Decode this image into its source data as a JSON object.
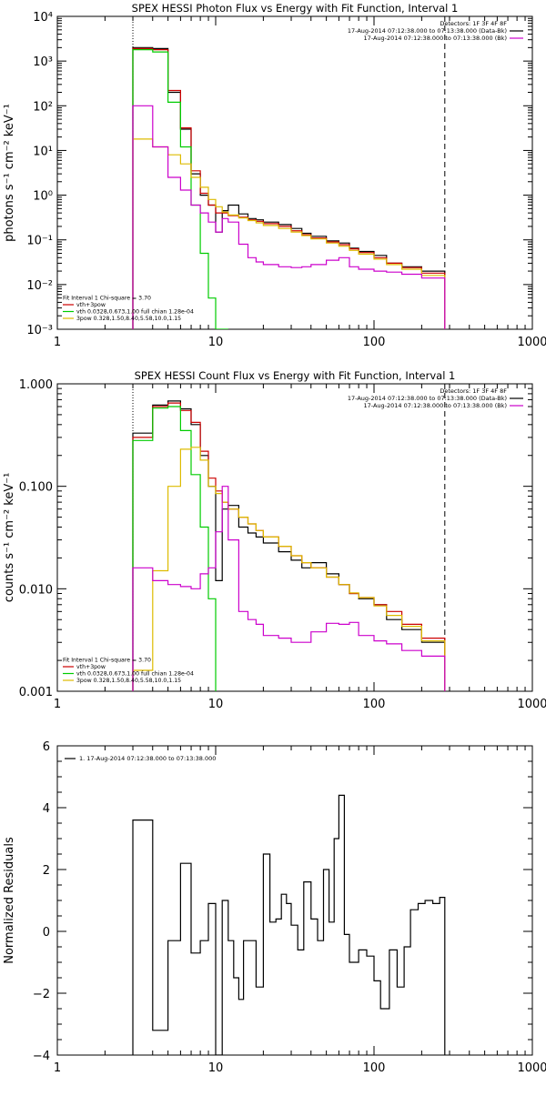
{
  "chart_data": [
    {
      "type": "line",
      "title": "SPEX HESSI Photon Flux vs Energy with Fit Function, Interval 1",
      "ylabel": "photons s⁻¹ cm⁻² keV⁻¹",
      "xscale": "log",
      "yscale": "log",
      "xlim": [
        1,
        1000
      ],
      "ylim": [
        0.001,
        10000
      ],
      "x_ticks": [
        "1",
        "10",
        "100",
        "1000"
      ],
      "y_ticks": [
        "10⁻³",
        "10⁻²",
        "10⁻¹",
        "10⁰",
        "10¹",
        "10²",
        "10³",
        "10⁴"
      ],
      "legend_topright": [
        {
          "text": "Detectors: 1F 3F 4F 8F",
          "color": "#000000"
        },
        {
          "text": "17-Aug-2014 07:12:38.000 to 07:13:38.000 (Data-Bk)",
          "color": "#000000"
        },
        {
          "text": "17-Aug-2014 07:12:38.000 to 07:13:38.000 (Bk)",
          "color": "#cc00cc"
        }
      ],
      "legend_bottomleft": [
        {
          "text": "Fit Interval 1   Chi-square = 3.70",
          "color": "#000000"
        },
        {
          "text": "vth+3pow",
          "color": "#cc0000"
        },
        {
          "text": "vth 0.0328,0.673,1.00  full chian 1.28e-04",
          "color": "#00cc00"
        },
        {
          "text": "3pow 0.328,1.50,8.40,5.58,10.0,1.15",
          "color": "#ddbb00"
        }
      ],
      "vlines": [
        {
          "x": 3,
          "style": "dotted",
          "color": "#000000"
        },
        {
          "x": 280,
          "style": "dashed",
          "color": "#000000"
        }
      ],
      "series": [
        {
          "color": "#000000",
          "x": [
            3.0,
            4.0,
            5.0,
            6.0,
            7.0,
            8.0,
            9.0,
            10.0,
            11.0,
            12.0,
            14.0,
            16.0,
            18.0,
            20.0,
            25.0,
            30.0,
            35.0,
            40.0,
            50.0,
            60.0,
            70.0,
            80.0,
            100.0,
            120.0,
            150.0,
            200.0,
            280.0
          ],
          "y": [
            2000.0,
            1900.0,
            200.0,
            30.0,
            3.0,
            1.0,
            0.6,
            0.15,
            0.45,
            0.6,
            0.38,
            0.3,
            0.28,
            0.25,
            0.22,
            0.18,
            0.14,
            0.12,
            0.095,
            0.085,
            0.065,
            0.055,
            0.045,
            0.03,
            0.025,
            0.02,
            0.015
          ]
        },
        {
          "color": "#cc0000",
          "x": [
            3.0,
            4.0,
            5.0,
            6.0,
            7.0,
            8.0,
            9.0,
            10.0,
            11.0,
            12.0,
            14.0,
            16.0,
            18.0,
            20.0,
            25.0,
            30.0,
            35.0,
            40.0,
            50.0,
            60.0,
            70.0,
            80.0,
            100.0,
            120.0,
            150.0,
            200.0,
            280.0
          ],
          "y": [
            1900.0,
            1800.0,
            220.0,
            32.0,
            3.5,
            1.1,
            0.6,
            0.4,
            0.4,
            0.35,
            0.32,
            0.28,
            0.26,
            0.23,
            0.2,
            0.16,
            0.13,
            0.11,
            0.09,
            0.078,
            0.063,
            0.052,
            0.04,
            0.03,
            0.024,
            0.018,
            0.012
          ]
        },
        {
          "color": "#00cc00",
          "x": [
            3.0,
            4.0,
            5.0,
            6.0,
            7.0,
            8.0,
            9.0,
            10.0,
            11.0,
            12.0
          ],
          "y": [
            1800.0,
            1600.0,
            120.0,
            12.0,
            0.6,
            0.05,
            0.005,
            0.001,
            0.001,
            0.001
          ]
        },
        {
          "color": "#ddbb00",
          "x": [
            3.0,
            4.0,
            5.0,
            6.0,
            7.0,
            8.0,
            9.0,
            10.0,
            11.0,
            12.0,
            14.0,
            16.0,
            18.0,
            20.0,
            25.0,
            30.0,
            35.0,
            40.0,
            50.0,
            60.0,
            70.0,
            80.0,
            100.0,
            120.0,
            150.0,
            200.0,
            280.0
          ],
          "y": [
            18.0,
            12.0,
            8.0,
            5.0,
            2.5,
            1.5,
            0.8,
            0.55,
            0.42,
            0.36,
            0.31,
            0.27,
            0.24,
            0.21,
            0.18,
            0.15,
            0.125,
            0.105,
            0.085,
            0.072,
            0.058,
            0.048,
            0.037,
            0.028,
            0.022,
            0.016,
            0.011
          ]
        },
        {
          "color": "#cc00cc",
          "x": [
            3.0,
            4.0,
            5.0,
            6.0,
            7.0,
            8.0,
            9.0,
            10.0,
            11.0,
            12.0,
            14.0,
            16.0,
            18.0,
            20.0,
            25.0,
            30.0,
            35.0,
            40.0,
            50.0,
            60.0,
            70.0,
            80.0,
            100.0,
            120.0,
            150.0,
            200.0,
            280.0
          ],
          "y": [
            100.0,
            12.0,
            2.5,
            1.3,
            0.6,
            0.4,
            0.25,
            0.15,
            0.3,
            0.25,
            0.08,
            0.04,
            0.032,
            0.028,
            0.025,
            0.024,
            0.025,
            0.028,
            0.035,
            0.04,
            0.025,
            0.022,
            0.02,
            0.019,
            0.017,
            0.014,
            0.01
          ]
        }
      ]
    },
    {
      "type": "line",
      "title": "SPEX HESSI Count Flux vs Energy with Fit Function, Interval 1",
      "ylabel": "counts s⁻¹ cm⁻² keV⁻¹",
      "xscale": "log",
      "yscale": "log",
      "xlim": [
        1,
        1000
      ],
      "ylim": [
        0.001,
        1.0
      ],
      "x_ticks": [
        "1",
        "10",
        "100",
        "1000"
      ],
      "y_ticks": [
        "0.001",
        "0.010",
        "0.100",
        "1.000"
      ],
      "legend_topright": [
        {
          "text": "Detectors: 1F 3F 4F 8F",
          "color": "#000000"
        },
        {
          "text": "17-Aug-2014 07:12:38.000 to 07:13:38.000 (Data-Bk)",
          "color": "#000000"
        },
        {
          "text": "17-Aug-2014 07:12:38.000 to 07:13:38.000 (Bk)",
          "color": "#cc00cc"
        }
      ],
      "legend_bottomleft": [
        {
          "text": "Fit Interval 1   Chi-square = 3.70",
          "color": "#000000"
        },
        {
          "text": "vth+3pow",
          "color": "#cc0000"
        },
        {
          "text": "vth 0.0328,0.673,1.00  full chian 1.28e-04",
          "color": "#00cc00"
        },
        {
          "text": "3pow 0.328,1.50,8.40,5.58,10.0,1.15",
          "color": "#ddbb00"
        }
      ],
      "vlines": [
        {
          "x": 3,
          "style": "dotted",
          "color": "#000000"
        },
        {
          "x": 280,
          "style": "dashed",
          "color": "#000000"
        }
      ],
      "series": [
        {
          "color": "#000000",
          "x": [
            3.0,
            4.0,
            5.0,
            6.0,
            7.0,
            8.0,
            9.0,
            10.0,
            11.0,
            12.0,
            14.0,
            16.0,
            18.0,
            20.0,
            25.0,
            30.0,
            35.0,
            40.0,
            50.0,
            60.0,
            70.0,
            80.0,
            100.0,
            120.0,
            150.0,
            200.0,
            280.0
          ],
          "y": [
            0.33,
            0.62,
            0.68,
            0.57,
            0.4,
            0.2,
            0.1,
            0.012,
            0.06,
            0.065,
            0.04,
            0.035,
            0.032,
            0.028,
            0.023,
            0.019,
            0.016,
            0.018,
            0.014,
            0.011,
            0.009,
            0.008,
            0.007,
            0.005,
            0.004,
            0.003,
            0.0025
          ]
        },
        {
          "color": "#cc0000",
          "x": [
            3.0,
            4.0,
            5.0,
            6.0,
            7.0,
            8.0,
            9.0,
            10.0,
            11.0,
            12.0,
            14.0,
            16.0,
            18.0,
            20.0,
            25.0,
            30.0,
            35.0,
            40.0,
            50.0,
            60.0,
            70.0,
            80.0,
            100.0,
            120.0,
            150.0,
            200.0,
            280.0
          ],
          "y": [
            0.3,
            0.6,
            0.65,
            0.55,
            0.42,
            0.22,
            0.12,
            0.09,
            0.07,
            0.06,
            0.05,
            0.043,
            0.037,
            0.032,
            0.026,
            0.021,
            0.018,
            0.016,
            0.013,
            0.011,
            0.009,
            0.0082,
            0.007,
            0.006,
            0.0045,
            0.0033,
            0.0022
          ]
        },
        {
          "color": "#00cc00",
          "x": [
            3.0,
            4.0,
            5.0,
            6.0,
            7.0,
            8.0,
            9.0,
            10.0
          ],
          "y": [
            0.28,
            0.58,
            0.6,
            0.35,
            0.13,
            0.04,
            0.008,
            0.001
          ]
        },
        {
          "color": "#ddbb00",
          "x": [
            3.0,
            4.0,
            5.0,
            6.0,
            7.0,
            8.0,
            9.0,
            10.0,
            11.0,
            12.0,
            14.0,
            16.0,
            18.0,
            20.0,
            25.0,
            30.0,
            35.0,
            40.0,
            50.0,
            60.0,
            70.0,
            80.0,
            100.0,
            120.0,
            150.0,
            200.0,
            280.0
          ],
          "y": [
            0.0016,
            0.015,
            0.1,
            0.23,
            0.24,
            0.18,
            0.1,
            0.085,
            0.07,
            0.06,
            0.05,
            0.043,
            0.037,
            0.032,
            0.026,
            0.021,
            0.018,
            0.016,
            0.013,
            0.011,
            0.0091,
            0.0082,
            0.0068,
            0.0055,
            0.0043,
            0.0031,
            0.0021
          ]
        },
        {
          "color": "#cc00cc",
          "x": [
            3.0,
            4.0,
            5.0,
            6.0,
            7.0,
            8.0,
            9.0,
            10.0,
            11.0,
            12.0,
            14.0,
            16.0,
            18.0,
            20.0,
            25.0,
            30.0,
            35.0,
            40.0,
            50.0,
            60.0,
            70.0,
            80.0,
            100.0,
            120.0,
            150.0,
            200.0,
            280.0
          ],
          "y": [
            0.016,
            0.012,
            0.011,
            0.0105,
            0.01,
            0.014,
            0.016,
            0.036,
            0.1,
            0.03,
            0.006,
            0.005,
            0.0045,
            0.0035,
            0.0033,
            0.003,
            0.003,
            0.0038,
            0.0046,
            0.0045,
            0.0047,
            0.0035,
            0.0031,
            0.0029,
            0.0025,
            0.0022,
            0.0016
          ]
        }
      ]
    },
    {
      "type": "line",
      "title": "",
      "ylabel": "Normalized Residuals",
      "xscale": "log",
      "yscale": "linear",
      "xlim": [
        1,
        1000
      ],
      "ylim": [
        -4,
        6
      ],
      "x_ticks": [
        "1",
        "10",
        "100",
        "1000"
      ],
      "y_ticks": [
        "−4",
        "−2",
        "0",
        "2",
        "4",
        "6"
      ],
      "legend_topleft": [
        {
          "text": "1. 17-Aug-2014 07:12:38.000 to 07:13:38.000",
          "color": "#000000"
        }
      ],
      "series": [
        {
          "color": "#000000",
          "x": [
            3.0,
            4.0,
            5.0,
            6.0,
            7.0,
            8.0,
            9.0,
            10.0,
            11.0,
            12.0,
            13.0,
            14.0,
            15.0,
            16.0,
            18.0,
            20.0,
            22.0,
            24.0,
            26.0,
            28.0,
            30.0,
            33.0,
            36.0,
            40.0,
            44.0,
            48.0,
            52.0,
            56.0,
            60.0,
            65.0,
            70.0,
            80.0,
            90.0,
            100.0,
            110.0,
            125.0,
            140.0,
            155.0,
            170.0,
            190.0,
            210.0,
            235.0,
            260.0,
            280.0
          ],
          "y": [
            3.6,
            -3.2,
            -0.3,
            2.2,
            -0.7,
            -0.3,
            0.9,
            -4.0,
            1.0,
            -0.3,
            -1.5,
            -2.2,
            -0.3,
            -0.3,
            -1.8,
            2.5,
            0.3,
            0.4,
            1.2,
            0.9,
            0.2,
            -0.6,
            1.6,
            0.4,
            -0.3,
            2.0,
            0.3,
            3.0,
            4.4,
            -0.1,
            -1.0,
            -0.6,
            -0.8,
            -1.6,
            -2.5,
            -0.6,
            -1.8,
            -0.5,
            0.7,
            0.9,
            1.0,
            0.9,
            1.1,
            -4.0
          ]
        }
      ]
    }
  ]
}
